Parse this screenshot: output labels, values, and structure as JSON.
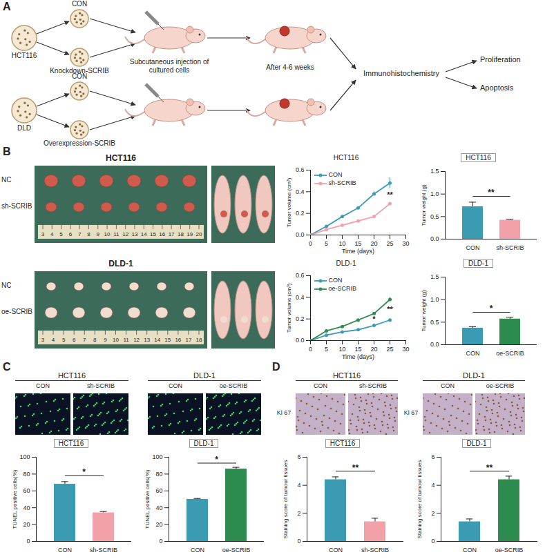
{
  "panel_labels": [
    "A",
    "B",
    "C",
    "D"
  ],
  "diagram": {
    "rows": [
      {
        "cell_line": "HCT116",
        "groups": [
          "CON",
          "Knockdown-SCRIB"
        ]
      },
      {
        "cell_line": "DLD",
        "groups": [
          "CON",
          "Overexpression-SCRIB"
        ]
      }
    ],
    "steps": [
      "Subcutaneous injection of cultured cells",
      "After 4-6 weeks",
      "Immunohistochemistry"
    ],
    "outcomes": [
      "Proliferation",
      "Apoptosis"
    ]
  },
  "photos": [
    {
      "title": "HCT116",
      "rows": [
        "NC",
        "sh-SCRIB"
      ],
      "ruler": [
        3,
        4,
        5,
        6,
        7,
        8,
        9,
        10,
        11,
        12,
        13,
        14,
        15,
        16,
        17,
        18,
        19,
        20
      ]
    },
    {
      "title": "DLD-1",
      "rows": [
        "NC",
        "oe-SCRIB"
      ],
      "ruler": [
        3,
        4,
        5,
        6,
        7,
        8,
        9,
        10,
        11,
        12,
        13,
        14,
        15,
        16,
        17,
        18
      ]
    }
  ],
  "images": {
    "C": [
      {
        "title": "HCT116",
        "groups": [
          "CON",
          "sh-SCRIB"
        ]
      },
      {
        "title": "DLD-1",
        "groups": [
          "CON",
          "oe-SCRIB"
        ]
      }
    ],
    "D": [
      {
        "title": "HCT116",
        "groups": [
          "CON",
          "sh-SCRIB"
        ],
        "stain": "Ki 67"
      },
      {
        "title": "DLD-1",
        "groups": [
          "CON",
          "oe-SCRIB"
        ],
        "stain": "Ki 67"
      }
    ]
  },
  "chart_data": [
    {
      "type": "line",
      "title": "HCT116",
      "x_label": "Time (days)",
      "y_label": "Tumor volume (cm³)",
      "x": [
        0,
        5,
        10,
        15,
        20,
        25
      ],
      "series": [
        {
          "name": "CON",
          "color": "#3b9bb3",
          "marker": "circle",
          "values": [
            0,
            0.08,
            0.17,
            0.25,
            0.38,
            0.48
          ],
          "errors": [
            0,
            0.005,
            0.008,
            0.01,
            0.02,
            0.05
          ]
        },
        {
          "name": "sh-SCRIB",
          "color": "#f3a1a9",
          "marker": "circle",
          "values": [
            0,
            0.05,
            0.09,
            0.13,
            0.17,
            0.29
          ],
          "errors": [
            0,
            0.004,
            0.005,
            0.006,
            0.008,
            0.01
          ]
        }
      ],
      "xlim": [
        0,
        30
      ],
      "xticks": [
        0,
        5,
        10,
        15,
        20,
        25,
        30
      ],
      "ylim": [
        0,
        0.6
      ],
      "yticks": [
        {
          "value": 0,
          "label": "0.0"
        },
        0.2,
        0.4,
        0.6
      ],
      "annotations": [
        {
          "x": 25,
          "y": 0.37,
          "text": "**"
        }
      ],
      "legend": "top-left"
    },
    {
      "type": "bar",
      "title": "HCT116",
      "y_label": "Tumor weight (g)",
      "categories": [
        "CON",
        "sh-SCRIB"
      ],
      "values": [
        0.72,
        0.42
      ],
      "errors": [
        0.1,
        0.02
      ],
      "colors": [
        "#3b9bb3",
        "#f3a1a9"
      ],
      "ylim": [
        0,
        1.5
      ],
      "yticks": [
        {
          "value": 0,
          "label": "0.0"
        },
        0.5,
        {
          "value": 1,
          "label": "1.0"
        },
        1.5
      ],
      "annotations": [
        {
          "y": 0.95,
          "text": "**"
        }
      ]
    },
    {
      "type": "line",
      "title": "DLD-1",
      "x_label": "Time (days)",
      "y_label": "Tumor volume (cm³)",
      "x": [
        0,
        5,
        10,
        15,
        20,
        25
      ],
      "series": [
        {
          "name": "CON",
          "color": "#3b9bb3",
          "marker": "circle",
          "values": [
            0,
            0.05,
            0.08,
            0.1,
            0.14,
            0.19
          ],
          "errors": [
            0,
            0.004,
            0.005,
            0.005,
            0.006,
            0.008
          ]
        },
        {
          "name": "oe-SCRIB",
          "color": "#2e8b4f",
          "marker": "circle",
          "values": [
            0,
            0.09,
            0.13,
            0.19,
            0.25,
            0.38
          ],
          "errors": [
            0,
            0.005,
            0.006,
            0.006,
            0.01,
            0.02
          ]
        }
      ],
      "xlim": [
        0,
        30
      ],
      "xticks": [
        0,
        5,
        10,
        15,
        20,
        25,
        30
      ],
      "ylim": [
        0,
        0.6
      ],
      "yticks": [
        {
          "value": 0,
          "label": "0.0"
        },
        0.2,
        0.4,
        0.6
      ],
      "annotations": [
        {
          "x": 20,
          "y": 0.195,
          "text": "*"
        },
        {
          "x": 25,
          "y": 0.285,
          "text": "**"
        }
      ],
      "legend": "top-left"
    },
    {
      "type": "bar",
      "title": "DLD-1",
      "y_label": "Tumor weight (g)",
      "categories": [
        "CON",
        "oe-SCRIB"
      ],
      "values": [
        0.37,
        0.57
      ],
      "errors": [
        0.03,
        0.04
      ],
      "colors": [
        "#3b9bb3",
        "#2e8b4f"
      ],
      "ylim": [
        0,
        1.5
      ],
      "yticks": [
        {
          "value": 0,
          "label": "0.0"
        },
        0.5,
        {
          "value": 1,
          "label": "1.0"
        },
        1.5
      ],
      "annotations": [
        {
          "y": 0.72,
          "text": "*"
        }
      ]
    },
    {
      "type": "bar",
      "title": "HCT116",
      "y_label": "TUNEL positive cells(%)",
      "categories": [
        "CON",
        "sh-SCRIB"
      ],
      "values": [
        68,
        34
      ],
      "errors": [
        3,
        1.5
      ],
      "colors": [
        "#3b9bb3",
        "#f3a1a9"
      ],
      "ylim": [
        0,
        100
      ],
      "yticks": [
        0,
        20,
        40,
        60,
        80,
        100
      ],
      "annotations": [
        {
          "y": 78,
          "text": "*"
        }
      ]
    },
    {
      "type": "bar",
      "title": "DLD-1",
      "y_label": "TUNEL positive cells(%)",
      "categories": [
        "CON",
        "oe-SCRIB"
      ],
      "values": [
        50,
        86
      ],
      "errors": [
        1,
        2
      ],
      "colors": [
        "#3b9bb3",
        "#2e8b4f"
      ],
      "ylim": [
        0,
        100
      ],
      "yticks": [
        0,
        20,
        40,
        60,
        80,
        100
      ],
      "annotations": [
        {
          "y": 93,
          "text": "*"
        }
      ]
    },
    {
      "type": "bar",
      "title": "HCT116",
      "y_label": "Staining score of tumour tissues",
      "categories": [
        "CON",
        "sh-SCRIB"
      ],
      "values": [
        4.4,
        1.4
      ],
      "errors": [
        0.2,
        0.25
      ],
      "colors": [
        "#3b9bb3",
        "#f3a1a9"
      ],
      "ylim": [
        0,
        6
      ],
      "yticks": [
        0,
        2,
        4,
        6
      ],
      "annotations": [
        {
          "y": 5.0,
          "text": "**"
        }
      ]
    },
    {
      "type": "bar",
      "title": "DLD-1",
      "y_label": "Staining score of tumour tissues",
      "categories": [
        "CON",
        "oe-SCRIB"
      ],
      "values": [
        1.4,
        4.4
      ],
      "errors": [
        0.2,
        0.25
      ],
      "colors": [
        "#3b9bb3",
        "#2e8b4f"
      ],
      "ylim": [
        0,
        6
      ],
      "yticks": [
        0,
        2,
        4,
        6
      ],
      "annotations": [
        {
          "y": 5.0,
          "text": "**"
        }
      ]
    }
  ]
}
